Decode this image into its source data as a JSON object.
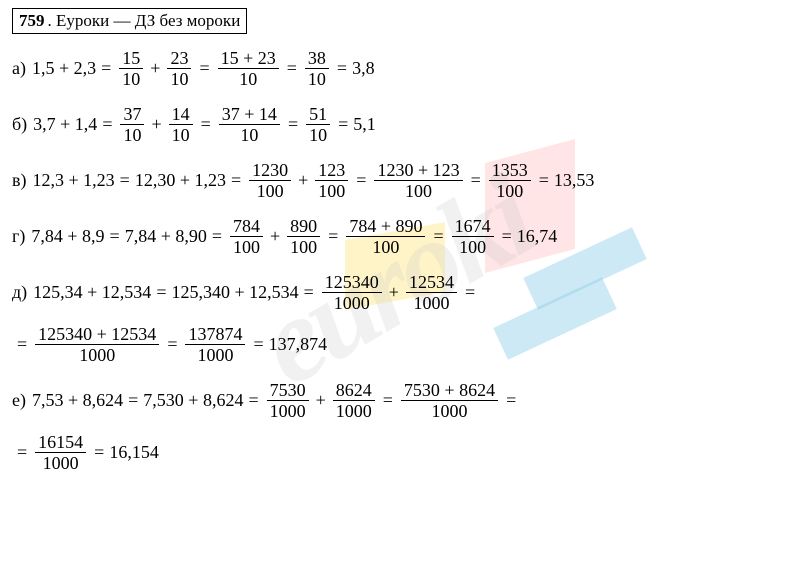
{
  "header": {
    "number": "759",
    "text": ". Еуроки  —  ДЗ без мороки"
  },
  "watermark": {
    "text": "euroki",
    "colors": {
      "text": "rgba(200,200,200,0.25)",
      "red": "rgba(255,180,180,0.35)",
      "yellow": "rgba(255,230,130,0.45)",
      "blue": "rgba(130,200,230,0.4)"
    }
  },
  "lines": {
    "a": {
      "label": "а)",
      "lhs": "1,5 + 2,3",
      "f1n": "15",
      "f1d": "10",
      "f2n": "23",
      "f2d": "10",
      "f3n": "15 + 23",
      "f3d": "10",
      "f4n": "38",
      "f4d": "10",
      "result": "3,8"
    },
    "b": {
      "label": "б)",
      "lhs": "3,7 + 1,4",
      "f1n": "37",
      "f1d": "10",
      "f2n": "14",
      "f2d": "10",
      "f3n": "37 + 14",
      "f3d": "10",
      "f4n": "51",
      "f4d": "10",
      "result": "5,1"
    },
    "v": {
      "label": "в)",
      "lhs": "12,3 + 1,23",
      "step2": "12,30 + 1,23",
      "f1n": "1230",
      "f1d": "100",
      "f2n": "123",
      "f2d": "100",
      "f3n": "1230 + 123",
      "f3d": "100",
      "f4n": "1353",
      "f4d": "100",
      "result": "13,53"
    },
    "g": {
      "label": "г)",
      "lhs": "7,84 + 8,9",
      "step2": "7,84 + 8,90",
      "f1n": "784",
      "f1d": "100",
      "f2n": "890",
      "f2d": "100",
      "f3n": "784 + 890",
      "f3d": "100",
      "f4n": "1674",
      "f4d": "100",
      "result": "16,74"
    },
    "d": {
      "label": "д)",
      "lhs": "125,34 + 12,534",
      "step2": "125,340 + 12,534",
      "f1n": "125340",
      "f1d": "1000",
      "f2n": "12534",
      "f2d": "1000",
      "f3n": "125340 + 12534",
      "f3d": "1000",
      "f4n": "137874",
      "f4d": "1000",
      "result": "137,874"
    },
    "e": {
      "label": "е)",
      "lhs": "7,53 + 8,624",
      "step2": "7,530 + 8,624",
      "f1n": "7530",
      "f1d": "1000",
      "f2n": "8624",
      "f2d": "1000",
      "f3n": "7530 + 8624",
      "f3d": "1000",
      "f4n": "16154",
      "f4d": "1000",
      "result": "16,154"
    }
  },
  "styling": {
    "font_family": "Times New Roman",
    "font_size_body": 18,
    "font_size_header": 17,
    "text_color": "#000000",
    "background_color": "#ffffff",
    "border_color": "#000000"
  }
}
